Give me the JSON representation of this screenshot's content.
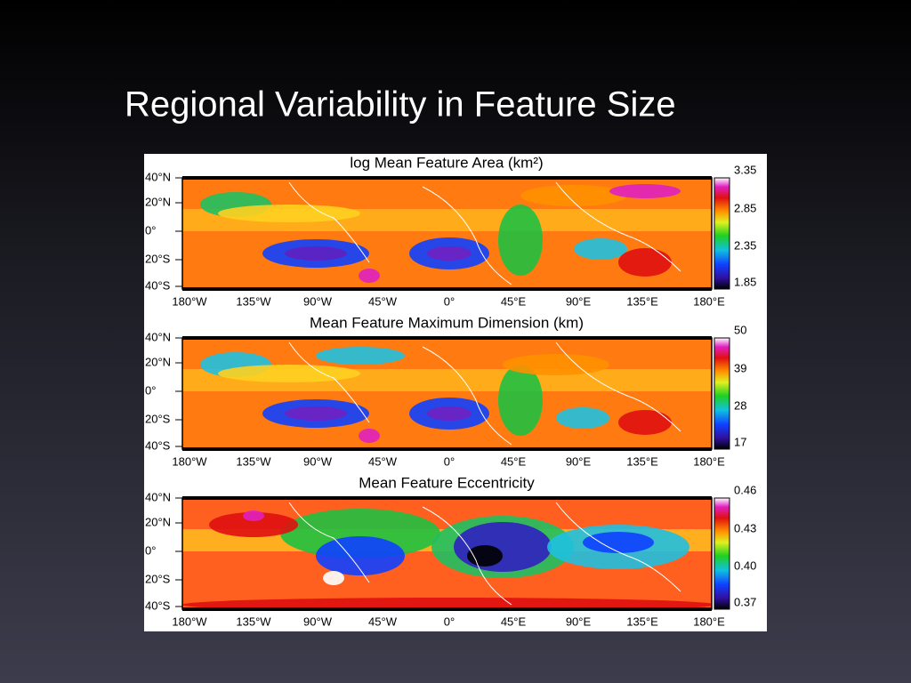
{
  "title": "Regional Variability in Feature Size",
  "panels": [
    {
      "title": "log Mean Feature Area (km²)",
      "lat_labels": [
        "40°N",
        "20°N",
        "0°",
        "20°S",
        "40°S"
      ],
      "lon_labels": [
        "180°W",
        "135°W",
        "90°W",
        "45°W",
        "0°",
        "45°E",
        "90°E",
        "135°E",
        "180°E"
      ],
      "colorbar_labels": [
        "3.35",
        "2.85",
        "2.35",
        "1.85"
      ]
    },
    {
      "title": "Mean Feature Maximum Dimension (km)",
      "lat_labels": [
        "40°N",
        "20°N",
        "0°",
        "20°S",
        "40°S"
      ],
      "lon_labels": [
        "180°W",
        "135°W",
        "90°W",
        "45°W",
        "0°",
        "45°E",
        "90°E",
        "135°E",
        "180°E"
      ],
      "colorbar_labels": [
        "50",
        "39",
        "28",
        "17"
      ]
    },
    {
      "title": "Mean Feature Eccentricity",
      "lat_labels": [
        "40°N",
        "20°N",
        "0°",
        "20°S",
        "40°S"
      ],
      "lon_labels": [
        "180°W",
        "135°W",
        "90°W",
        "45°W",
        "0°",
        "45°E",
        "90°E",
        "135°E",
        "180°E"
      ],
      "colorbar_labels": [
        "0.46",
        "0.43",
        "0.40",
        "0.37"
      ]
    }
  ]
}
